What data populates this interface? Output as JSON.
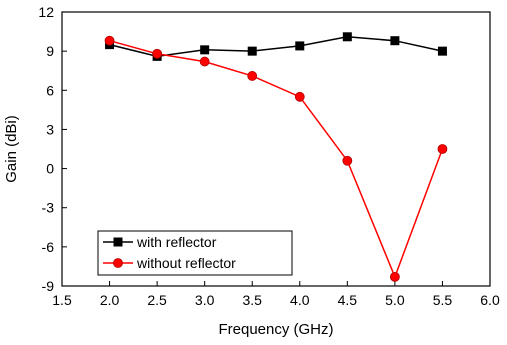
{
  "chart_data": {
    "type": "line",
    "title": "",
    "xlabel": "Frequency (GHz)",
    "ylabel": "Gain (dBi)",
    "xlim": [
      1.5,
      6.0
    ],
    "ylim": [
      -9,
      12
    ],
    "xticks": [
      1.5,
      2.0,
      2.5,
      3.0,
      3.5,
      4.0,
      4.5,
      5.0,
      5.5,
      6.0
    ],
    "yticks": [
      -9,
      -6,
      -3,
      0,
      3,
      6,
      9,
      12
    ],
    "xtick_labels": [
      "1.5",
      "2.0",
      "2.5",
      "3.0",
      "3.5",
      "4.0",
      "4.5",
      "5.0",
      "5.5",
      "6.0"
    ],
    "ytick_labels": [
      "-9",
      "-6",
      "-3",
      "0",
      "3",
      "6",
      "9",
      "12"
    ],
    "grid": false,
    "legend_position": "bottom-left",
    "series": [
      {
        "name": "with reflector",
        "color": "#000000",
        "marker": "square",
        "x": [
          2.0,
          2.5,
          3.0,
          3.5,
          4.0,
          4.5,
          5.0,
          5.5
        ],
        "y": [
          9.5,
          8.6,
          9.1,
          9.0,
          9.4,
          10.1,
          9.8,
          9.0
        ]
      },
      {
        "name": "without reflector",
        "color": "#ff0000",
        "marker": "circle",
        "x": [
          2.0,
          2.5,
          3.0,
          3.5,
          4.0,
          4.5,
          5.0,
          5.5
        ],
        "y": [
          9.8,
          8.8,
          8.2,
          7.1,
          5.5,
          0.6,
          -8.3,
          1.5
        ]
      }
    ]
  }
}
